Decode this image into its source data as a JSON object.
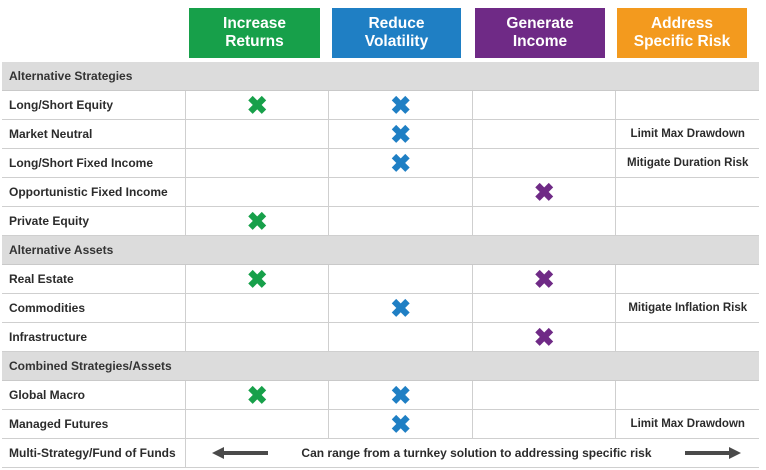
{
  "headers": [
    {
      "label": "Increase\nReturns",
      "color": "#17a04a"
    },
    {
      "label": "Reduce\nVolatility",
      "color": "#1f7fc4"
    },
    {
      "label": "Generate\nIncome",
      "color": "#6f2a86"
    },
    {
      "label": "Address\nSpecific Risk",
      "color": "#f39a1e"
    }
  ],
  "mark_glyph": "✖",
  "sections": [
    {
      "title": "Alternative Strategies",
      "rows": [
        {
          "label": "Long/Short Equity",
          "marks": [
            true,
            true,
            false
          ],
          "note": ""
        },
        {
          "label": "Market Neutral",
          "marks": [
            false,
            true,
            false
          ],
          "note": "Limit Max Drawdown"
        },
        {
          "label": "Long/Short Fixed Income",
          "marks": [
            false,
            true,
            false
          ],
          "note": "Mitigate Duration Risk"
        },
        {
          "label": "Opportunistic Fixed Income",
          "marks": [
            false,
            false,
            true
          ],
          "note": ""
        },
        {
          "label": "Private Equity",
          "marks": [
            true,
            false,
            false
          ],
          "note": ""
        }
      ]
    },
    {
      "title": "Alternative Assets",
      "rows": [
        {
          "label": "Real Estate",
          "marks": [
            true,
            false,
            true
          ],
          "note": ""
        },
        {
          "label": "Commodities",
          "marks": [
            false,
            true,
            false
          ],
          "note": "Mitigate Inflation Risk"
        },
        {
          "label": "Infrastructure",
          "marks": [
            false,
            false,
            true
          ],
          "note": ""
        }
      ]
    },
    {
      "title": "Combined Strategies/Assets",
      "rows": [
        {
          "label": "Global Macro",
          "marks": [
            true,
            true,
            false
          ],
          "note": ""
        },
        {
          "label": "Managed Futures",
          "marks": [
            false,
            true,
            false
          ],
          "note": "Limit Max Drawdown"
        }
      ]
    }
  ],
  "final_row": {
    "label": "Multi-Strategy/Fund of Funds",
    "text": "Can range from a turnkey solution to addressing specific risk"
  }
}
